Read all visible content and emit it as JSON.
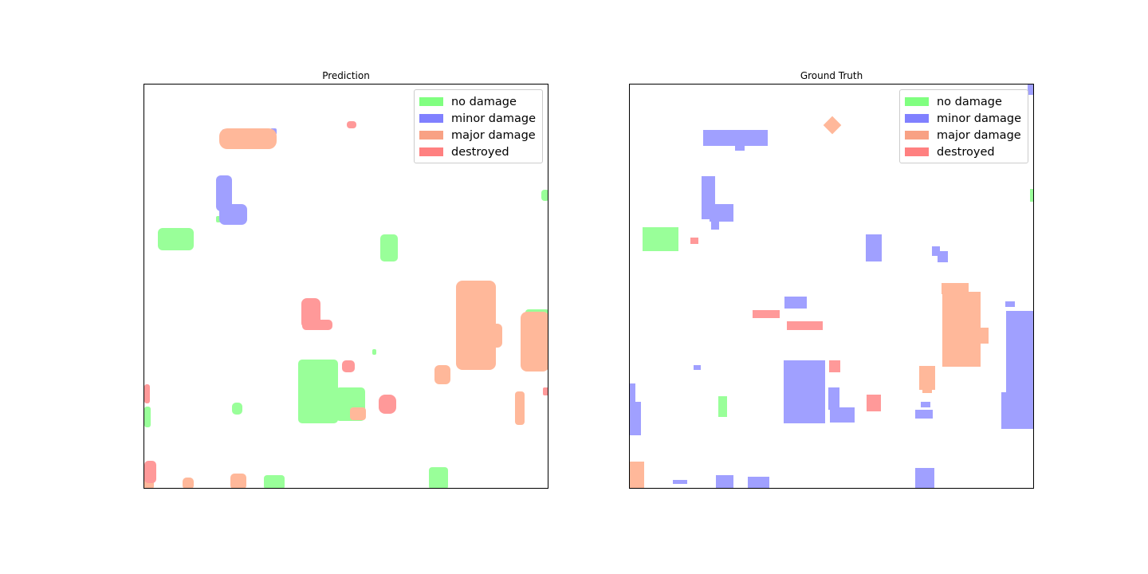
{
  "legend": [
    {
      "label": "no damage",
      "color": "#80ff80"
    },
    {
      "label": "minor damage",
      "color": "#8080ff"
    },
    {
      "label": "major damage",
      "color": "#f8a184"
    },
    {
      "label": "destroyed",
      "color": "#ff8080"
    }
  ],
  "panels": [
    {
      "title": "Prediction"
    },
    {
      "title": "Ground Truth"
    }
  ],
  "colors": {
    "no_damage_fill": "#99ff99",
    "minor_damage_fill": "#a0a0ff",
    "major_damage_fill": "#ffb89a",
    "destroyed_fill": "#ff9999"
  }
}
